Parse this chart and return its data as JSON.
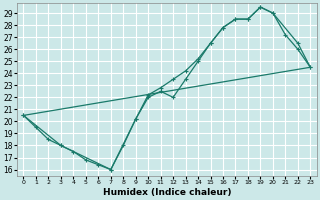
{
  "title": "",
  "xlabel": "Humidex (Indice chaleur)",
  "bg_color": "#cce8e8",
  "grid_color": "#ffffff",
  "line_color": "#1a7a6a",
  "xlim": [
    -0.5,
    23.5
  ],
  "ylim": [
    15.5,
    29.8
  ],
  "xticks": [
    0,
    1,
    2,
    3,
    4,
    5,
    6,
    7,
    8,
    9,
    10,
    11,
    12,
    13,
    14,
    15,
    16,
    17,
    18,
    19,
    20,
    21,
    22,
    23
  ],
  "yticks": [
    16,
    17,
    18,
    19,
    20,
    21,
    22,
    23,
    24,
    25,
    26,
    27,
    28,
    29
  ],
  "line1_x": [
    0,
    1,
    2,
    3,
    4,
    5,
    6,
    7,
    8,
    9,
    10,
    11,
    12,
    13,
    14,
    15,
    16,
    17,
    18,
    19,
    20,
    21,
    22,
    23
  ],
  "line1_y": [
    20.5,
    19.5,
    18.5,
    18.0,
    17.5,
    16.8,
    16.4,
    16.0,
    18.0,
    20.2,
    22.2,
    22.8,
    23.5,
    24.2,
    25.2,
    26.5,
    27.8,
    28.5,
    28.5,
    29.5,
    29.0,
    27.2,
    26.0,
    24.5
  ],
  "line2_x": [
    0,
    3,
    7,
    9,
    10,
    11,
    12,
    13,
    14,
    15,
    16,
    17,
    18,
    19,
    20,
    22,
    23
  ],
  "line2_y": [
    20.5,
    18.0,
    16.0,
    20.2,
    22.0,
    22.5,
    22.0,
    23.5,
    25.0,
    26.5,
    27.8,
    28.5,
    28.5,
    29.5,
    29.0,
    26.5,
    24.5
  ],
  "line3_x": [
    0,
    23
  ],
  "line3_y": [
    20.5,
    24.5
  ]
}
